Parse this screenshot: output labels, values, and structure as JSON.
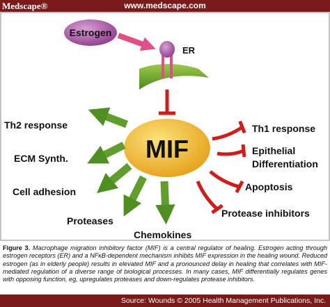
{
  "header": {
    "brand": "Medscape®",
    "url": "www.medscape.com"
  },
  "nodes": {
    "estrogen": {
      "label": "Estrogen"
    },
    "receptor": {
      "label": "ER"
    },
    "center": {
      "label": "MIF"
    },
    "upregulated": [
      {
        "label": "Th2 response"
      },
      {
        "label": "ECM Synth."
      },
      {
        "label": "Cell adhesion"
      },
      {
        "label": "Proteases"
      },
      {
        "label": "Chemokines"
      }
    ],
    "downregulated": [
      {
        "label_lines": [
          "Th1 response"
        ]
      },
      {
        "label_lines": [
          "Epithelial",
          "Differentiation"
        ]
      },
      {
        "label_lines": [
          "Apoptosis"
        ]
      },
      {
        "label_lines": [
          "Protease inhibitors"
        ]
      }
    ]
  },
  "caption": {
    "figure": "Figure 3.",
    "text": "Macrophage migration inhibitory factor (MIF) is a central regulator of healing. Estrogen acting through estrogen receptors (ER) and a NFκB-dependent mechanism inhibits MIF expression in the healing wound. Reduced estrogen (as in elderly people) results in elevated MIF and a pronounced delay in healing that correlates with MIF-mediated regulation of a diverse range of biological processes. In many cases, MIF differentially regulates genes with opposing function, eg, upregulates proteases and down-regulates protease inhibitors."
  },
  "footer": {
    "source": "Source: Wounds © 2005 Health Management Publications, Inc."
  }
}
